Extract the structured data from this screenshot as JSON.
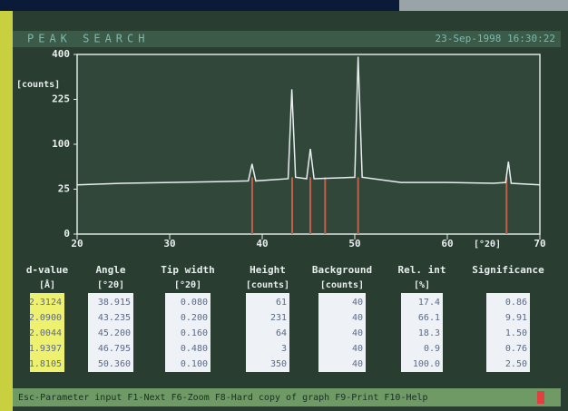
{
  "screen": {
    "header": {
      "title": "PEAK SEARCH",
      "timestamp": "23-Sep-1998 16:30:22"
    },
    "table": {
      "columns": [
        {
          "name": "d-value",
          "unit": "[Å]"
        },
        {
          "name": "Angle",
          "unit": "[°2θ]"
        },
        {
          "name": "Tip width",
          "unit": "[°2θ]"
        },
        {
          "name": "Height",
          "unit": "[counts]"
        },
        {
          "name": "Background",
          "unit": "[counts]"
        },
        {
          "name": "Rel. int",
          "unit": "[%]"
        },
        {
          "name": "Significance",
          "unit": null
        }
      ],
      "rows": [
        [
          "2.3124",
          "38.915",
          "0.080",
          "61",
          "40",
          "17.4",
          "0.86"
        ],
        [
          "2.0900",
          "43.235",
          "0.200",
          "231",
          "40",
          "66.1",
          "9.91"
        ],
        [
          "2.0044",
          "45.200",
          "0.160",
          "64",
          "40",
          "18.3",
          "1.50"
        ],
        [
          "1.9397",
          "46.795",
          "0.480",
          "3",
          "40",
          "0.9",
          "0.76"
        ],
        [
          "1.8105",
          "50.360",
          "0.100",
          "350",
          "40",
          "100.0",
          "2.50"
        ]
      ]
    },
    "footer": "Esc-Parameter input F1-Next F6-Zoom F8-Hard copy of graph F9-Print F10-Help"
  },
  "chart_data": {
    "type": "line",
    "y_label": "[counts]",
    "x_label": "[°2θ]",
    "y_scale": "sqrt",
    "xlim": [
      20,
      70
    ],
    "xticks": [
      20,
      30,
      40,
      50,
      60,
      70
    ],
    "ylim": [
      0,
      400
    ],
    "yticks": [
      0,
      25,
      100,
      225,
      400
    ],
    "series": [
      {
        "name": null,
        "color": "#e8eef0",
        "x": [
          20,
          25,
          30,
          35,
          38.5,
          38.9,
          39.3,
          42.8,
          43.2,
          43.6,
          44.8,
          45.2,
          45.6,
          50,
          50.36,
          50.8,
          55,
          60,
          65,
          66.3,
          66.6,
          66.9,
          70
        ],
        "values": [
          30,
          32,
          33,
          34,
          35,
          61,
          35,
          38,
          260,
          40,
          38,
          90,
          38,
          40,
          390,
          40,
          33,
          33,
          32,
          33,
          65,
          32,
          30
        ]
      }
    ],
    "markers": {
      "color": "#c0604a",
      "x": [
        38.915,
        43.235,
        45.2,
        46.795,
        50.36,
        66.4
      ],
      "values": [
        40,
        40,
        40,
        40,
        40,
        40
      ]
    }
  }
}
